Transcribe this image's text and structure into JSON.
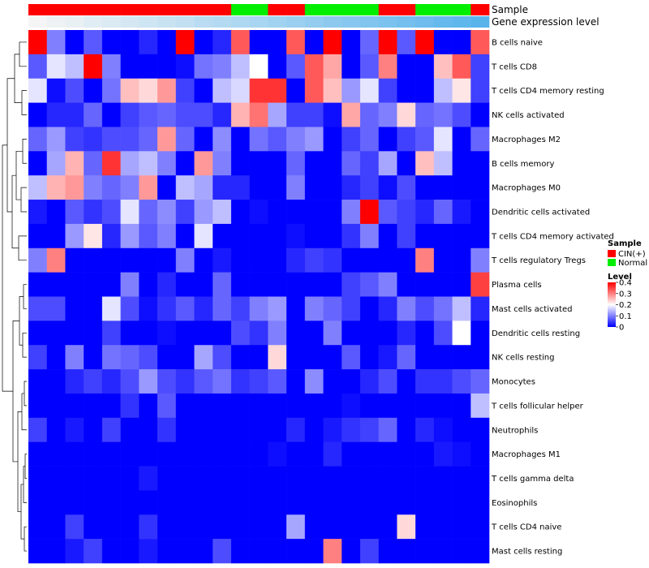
{
  "chart_data": {
    "type": "heatmap",
    "annotation_tracks": [
      "Sample",
      "Gene expression level"
    ],
    "sample_groups": [
      "CIN",
      "CIN",
      "CIN",
      "CIN",
      "CIN",
      "CIN",
      "CIN",
      "CIN",
      "CIN",
      "CIN",
      "CIN",
      "Normal",
      "Normal",
      "CIN",
      "CIN",
      "Normal",
      "Normal",
      "Normal",
      "Normal",
      "CIN",
      "CIN",
      "Normal",
      "Normal",
      "Normal",
      "CIN"
    ],
    "expression_levels": [
      0.0,
      0.04,
      0.08,
      0.13,
      0.17,
      0.21,
      0.25,
      0.29,
      0.33,
      0.38,
      0.42,
      0.46,
      0.5,
      0.54,
      0.58,
      0.63,
      0.67,
      0.71,
      0.75,
      0.79,
      0.83,
      0.88,
      0.92,
      0.96,
      1.0
    ],
    "rows": [
      "B cells naive",
      "T cells CD8",
      "T cells CD4 memory resting",
      "NK cells activated",
      "Macrophages M2",
      "B cells memory",
      "Macrophages M0",
      "Dendritic cells activated",
      "T cells CD4 memory activated",
      "T cells regulatory  Tregs",
      "Plasma cells",
      "Mast cells activated",
      "Dendritic cells resting",
      "NK cells resting",
      "Monocytes",
      "T cells follicular helper",
      "Neutrophils",
      "Macrophages M1",
      "T cells gamma delta",
      "Eosinophils",
      "T cells CD4 naive",
      "Mast cells resting"
    ],
    "values": [
      [
        0.4,
        0.1,
        0.0,
        0.07,
        0.0,
        0.0,
        0.03,
        0.0,
        0.4,
        0.0,
        0.03,
        0.33,
        0.0,
        0.0,
        0.33,
        0.0,
        0.4,
        0.0,
        0.08,
        0.4,
        0.07,
        0.4,
        0.0,
        0.0,
        0.33
      ],
      [
        0.07,
        0.18,
        0.15,
        0.4,
        0.1,
        0.0,
        0.0,
        0.0,
        0.01,
        0.09,
        0.1,
        0.15,
        0.2,
        0.0,
        0.07,
        0.33,
        0.27,
        0.0,
        0.07,
        0.3,
        0.0,
        0.0,
        0.25,
        0.33,
        0.05
      ],
      [
        0.18,
        0.01,
        0.06,
        0.0,
        0.09,
        0.25,
        0.23,
        0.28,
        0.05,
        0.0,
        0.15,
        0.17,
        0.36,
        0.36,
        0.0,
        0.33,
        0.25,
        0.12,
        0.18,
        0.05,
        0.0,
        0.0,
        0.15,
        0.22,
        0.05
      ],
      [
        0.0,
        0.03,
        0.03,
        0.08,
        0.0,
        0.05,
        0.07,
        0.08,
        0.06,
        0.06,
        0.03,
        0.26,
        0.31,
        0.13,
        0.05,
        0.05,
        0.01,
        0.27,
        0.08,
        0.1,
        0.23,
        0.08,
        0.09,
        0.06,
        0.0
      ],
      [
        0.08,
        0.12,
        0.05,
        0.04,
        0.06,
        0.06,
        0.08,
        0.28,
        0.08,
        0.0,
        0.11,
        0.0,
        0.09,
        0.07,
        0.1,
        0.12,
        0.0,
        0.05,
        0.08,
        0.0,
        0.05,
        0.07,
        0.18,
        0.0,
        0.08
      ],
      [
        0.0,
        0.13,
        0.26,
        0.08,
        0.36,
        0.13,
        0.15,
        0.1,
        0.0,
        0.28,
        0.1,
        0.0,
        0.0,
        0.0,
        0.08,
        0.0,
        0.0,
        0.08,
        0.05,
        0.13,
        0.0,
        0.25,
        0.15,
        0.0,
        0.0
      ],
      [
        0.15,
        0.26,
        0.28,
        0.1,
        0.08,
        0.1,
        0.28,
        0.0,
        0.15,
        0.13,
        0.03,
        0.03,
        0.0,
        0.0,
        0.1,
        0.0,
        0.0,
        0.03,
        0.05,
        0.01,
        0.06,
        0.0,
        0.0,
        0.0,
        0.0
      ],
      [
        0.02,
        0.0,
        0.07,
        0.04,
        0.06,
        0.18,
        0.08,
        0.11,
        0.05,
        0.12,
        0.15,
        0.0,
        0.01,
        0.0,
        0.0,
        0.0,
        0.0,
        0.1,
        0.4,
        0.07,
        0.05,
        0.03,
        0.08,
        0.02,
        0.0
      ],
      [
        0.0,
        0.0,
        0.12,
        0.22,
        0.03,
        0.12,
        0.07,
        0.1,
        0.0,
        0.18,
        0.0,
        0.0,
        0.0,
        0.0,
        0.01,
        0.0,
        0.0,
        0.04,
        0.1,
        0.0,
        0.05,
        0.0,
        0.0,
        0.0,
        0.0
      ],
      [
        0.1,
        0.3,
        0.0,
        0.0,
        0.0,
        0.0,
        0.0,
        0.0,
        0.1,
        0.0,
        0.02,
        0.0,
        0.0,
        0.0,
        0.03,
        0.05,
        0.04,
        0.0,
        0.0,
        0.0,
        0.0,
        0.3,
        0.0,
        0.0,
        0.1
      ],
      [
        0.0,
        0.0,
        0.0,
        0.0,
        0.0,
        0.1,
        0.0,
        0.03,
        0.0,
        0.0,
        0.08,
        0.0,
        0.0,
        0.0,
        0.0,
        0.0,
        0.0,
        0.05,
        0.07,
        0.1,
        0.0,
        0.0,
        0.0,
        0.0,
        0.35
      ],
      [
        0.06,
        0.06,
        0.0,
        0.0,
        0.18,
        0.06,
        0.01,
        0.04,
        0.07,
        0.03,
        0.08,
        0.05,
        0.1,
        0.12,
        0.0,
        0.1,
        0.08,
        0.05,
        0.0,
        0.03,
        0.1,
        0.06,
        0.09,
        0.15,
        0.03
      ],
      [
        0.0,
        0.0,
        0.0,
        0.0,
        0.05,
        0.0,
        0.0,
        0.01,
        0.0,
        0.0,
        0.0,
        0.06,
        0.04,
        0.1,
        0.0,
        0.0,
        0.1,
        0.0,
        0.0,
        0.0,
        0.03,
        0.0,
        0.06,
        0.2,
        0.0
      ],
      [
        0.05,
        0.0,
        0.1,
        0.0,
        0.09,
        0.08,
        0.06,
        0.0,
        0.0,
        0.13,
        0.06,
        0.0,
        0.0,
        0.23,
        0.0,
        0.0,
        0.0,
        0.07,
        0.0,
        0.02,
        0.08,
        0.0,
        0.0,
        0.0,
        0.0
      ],
      [
        0.0,
        0.0,
        0.03,
        0.05,
        0.03,
        0.06,
        0.12,
        0.06,
        0.04,
        0.07,
        0.09,
        0.04,
        0.05,
        0.07,
        0.0,
        0.11,
        0.0,
        0.0,
        0.03,
        0.06,
        0.0,
        0.04,
        0.04,
        0.06,
        0.08
      ],
      [
        0.0,
        0.0,
        0.0,
        0.0,
        0.0,
        0.04,
        0.0,
        0.07,
        0.0,
        0.0,
        0.0,
        0.0,
        0.0,
        0.0,
        0.0,
        0.0,
        0.0,
        0.01,
        0.0,
        0.0,
        0.0,
        0.0,
        0.0,
        0.0,
        0.15
      ],
      [
        0.05,
        0.0,
        0.02,
        0.0,
        0.05,
        0.0,
        0.0,
        0.04,
        0.0,
        0.0,
        0.0,
        0.0,
        0.0,
        0.0,
        0.03,
        0.0,
        0.02,
        0.04,
        0.05,
        0.08,
        0.0,
        0.03,
        0.01,
        0.0,
        0.0
      ],
      [
        0.0,
        0.0,
        0.0,
        0.0,
        0.0,
        0.0,
        0.0,
        0.0,
        0.0,
        0.0,
        0.0,
        0.0,
        0.0,
        0.01,
        0.0,
        0.0,
        0.03,
        0.0,
        0.0,
        0.0,
        0.0,
        0.0,
        0.02,
        0.01,
        0.0
      ],
      [
        0.0,
        0.0,
        0.0,
        0.0,
        0.0,
        0.0,
        0.02,
        0.0,
        0.0,
        0.0,
        0.0,
        0.0,
        0.0,
        0.0,
        0.0,
        0.0,
        0.0,
        0.0,
        0.0,
        0.0,
        0.0,
        0.0,
        0.0,
        0.0,
        0.0
      ],
      [
        0.0,
        0.0,
        0.0,
        0.0,
        0.0,
        0.0,
        0.0,
        0.0,
        0.0,
        0.0,
        0.0,
        0.0,
        0.0,
        0.0,
        0.0,
        0.0,
        0.0,
        0.0,
        0.0,
        0.0,
        0.0,
        0.0,
        0.0,
        0.0,
        0.0
      ],
      [
        0.0,
        0.0,
        0.05,
        0.0,
        0.0,
        0.0,
        0.04,
        0.0,
        0.0,
        0.0,
        0.0,
        0.0,
        0.0,
        0.0,
        0.13,
        0.0,
        0.0,
        0.0,
        0.0,
        0.0,
        0.23,
        0.0,
        0.0,
        0.0,
        0.0
      ],
      [
        0.0,
        0.0,
        0.02,
        0.05,
        0.0,
        0.0,
        0.02,
        0.0,
        0.0,
        0.0,
        0.06,
        0.0,
        0.0,
        0.0,
        0.0,
        0.0,
        0.3,
        0.0,
        0.05,
        0.0,
        0.0,
        0.0,
        0.0,
        0.0,
        0.0
      ]
    ],
    "color_scale": {
      "min": 0,
      "max": 0.4,
      "low": "#0000ff",
      "mid": "#ffffff",
      "high": "#ff0000",
      "mid_value": 0.2
    },
    "legend_sample": {
      "title": "Sample",
      "items": [
        {
          "label": "CIN(+)",
          "color": "#ff0000"
        },
        {
          "label": "Normal",
          "color": "#00ee00"
        }
      ]
    },
    "legend_level": {
      "title": "Level",
      "ticks": [
        0.4,
        0.3,
        0.2,
        0.1,
        0
      ]
    },
    "expression_color_low": "#f5f5f5",
    "expression_color_high": "#5ab4ec",
    "sample_colors": {
      "CIN": "#ff0000",
      "Normal": "#00ee00"
    }
  }
}
